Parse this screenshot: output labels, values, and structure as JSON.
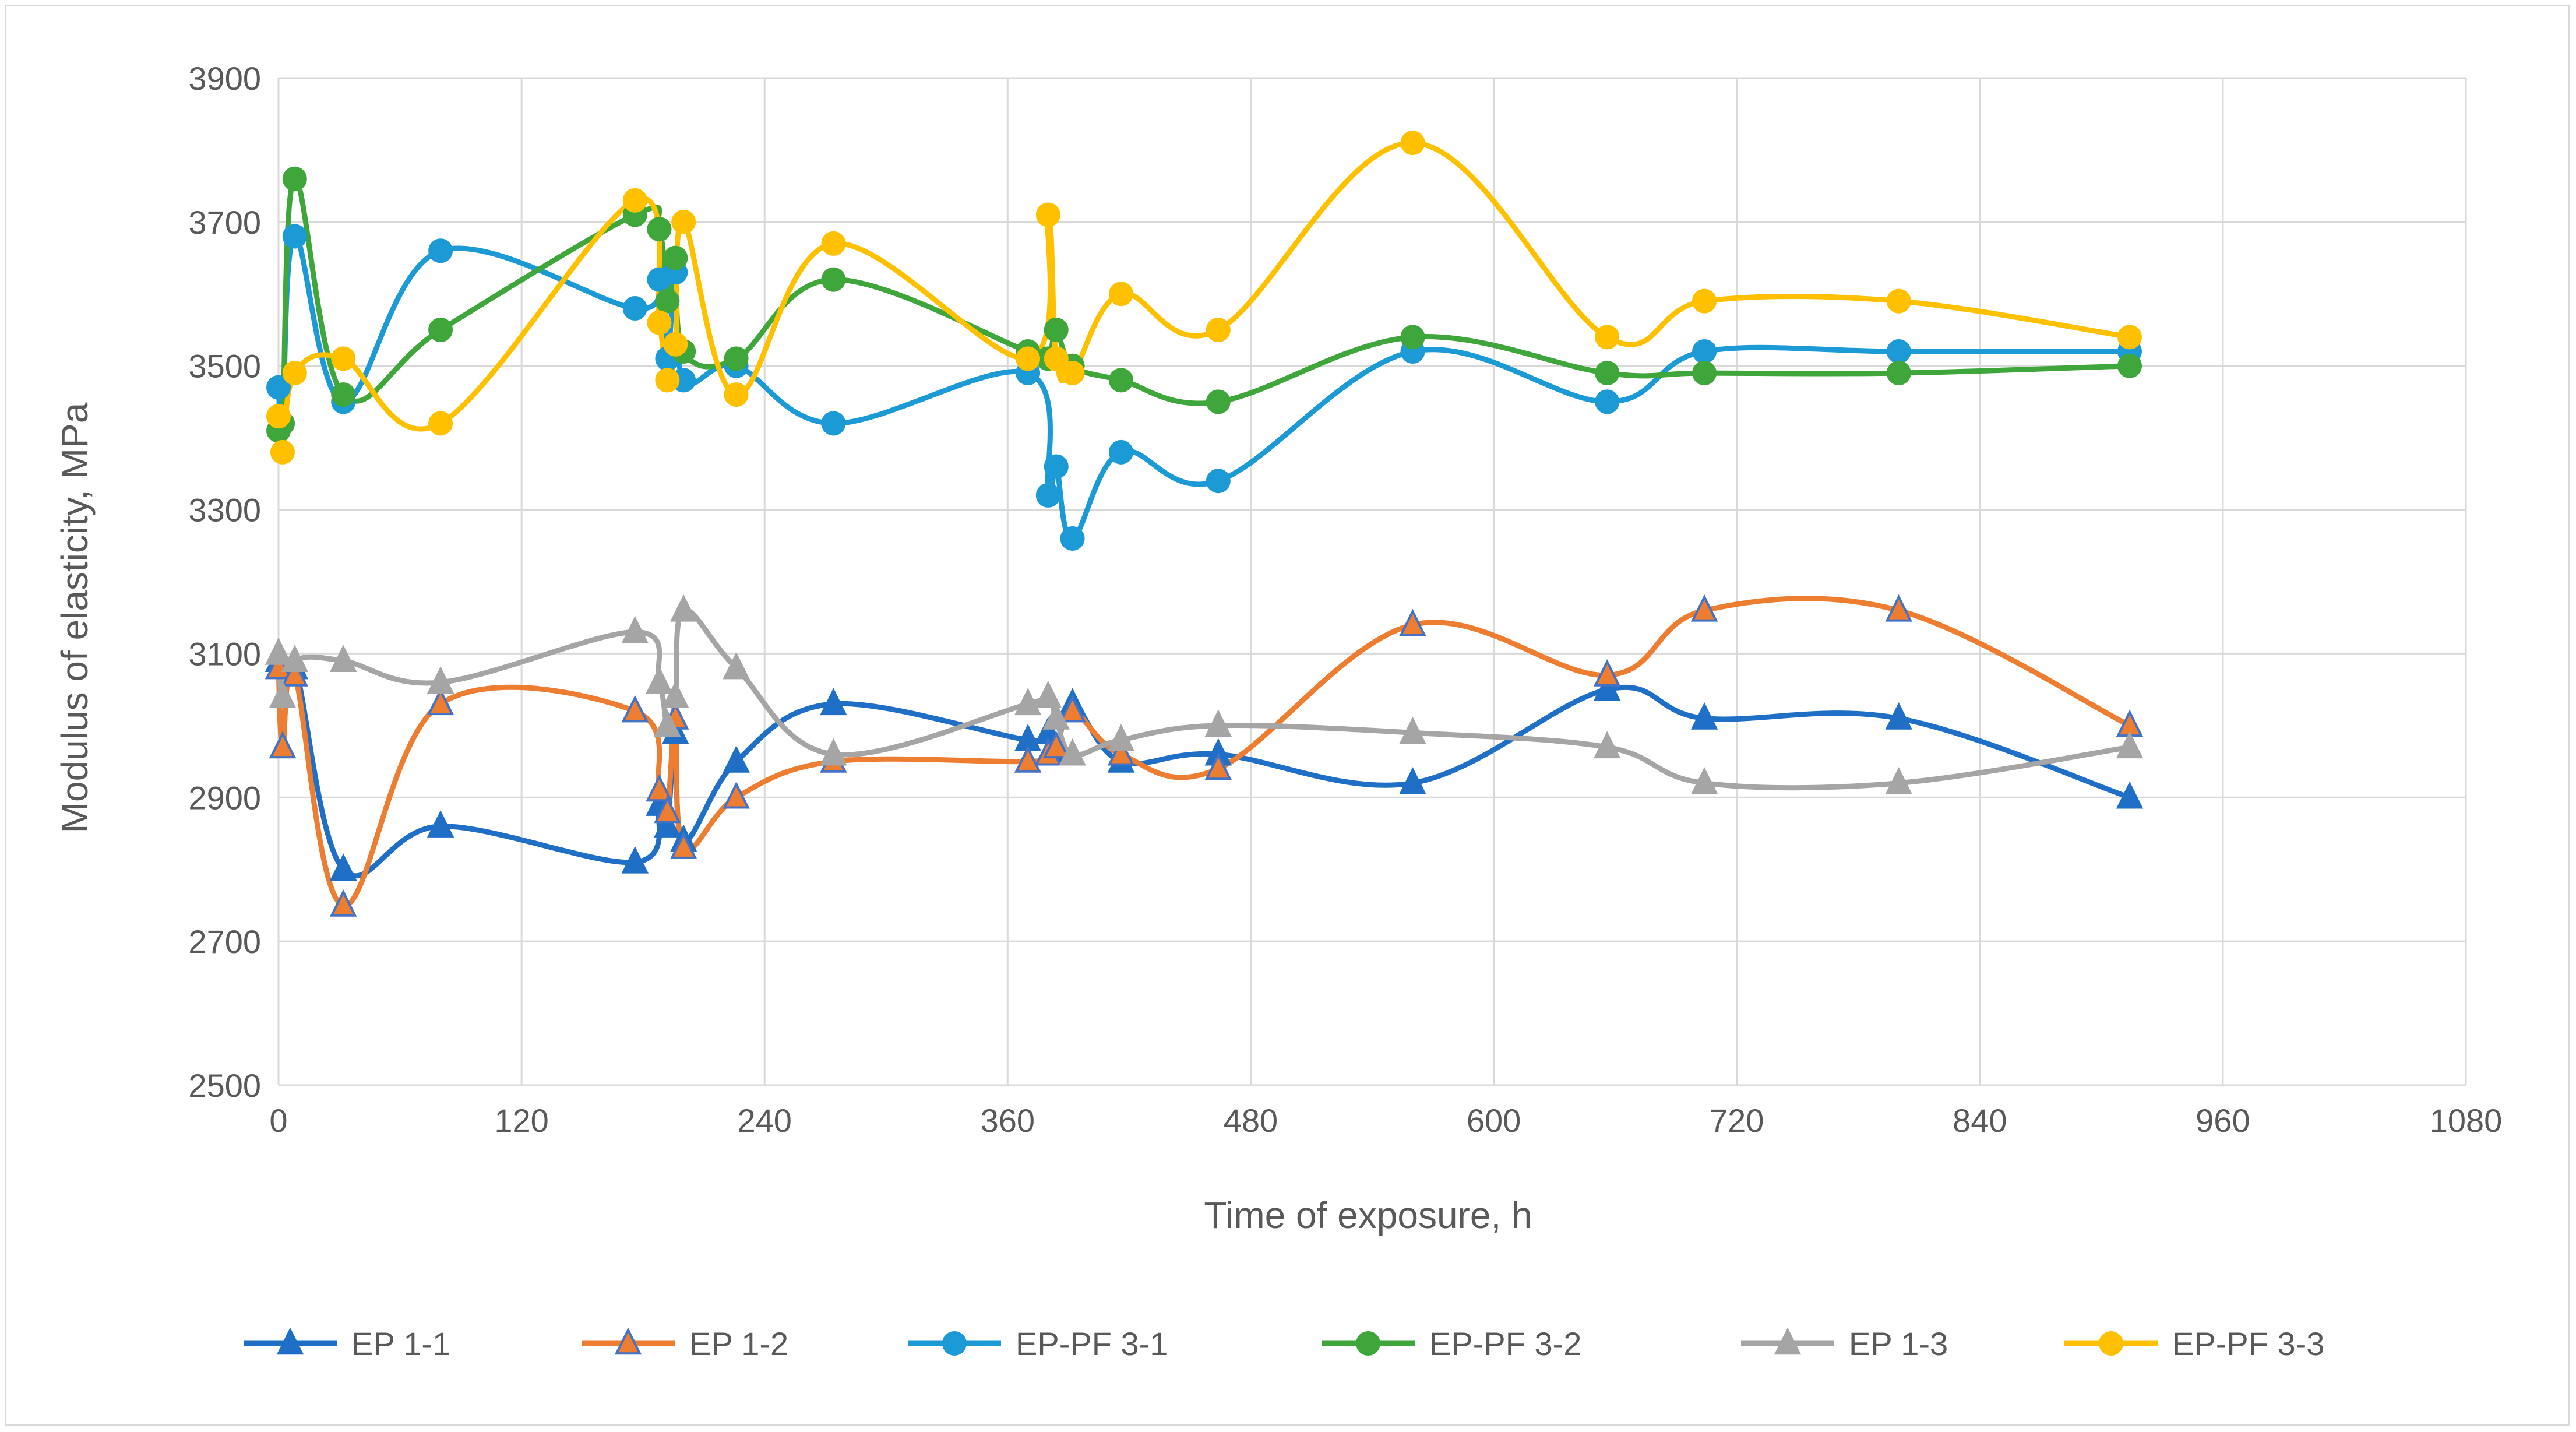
{
  "chart_data": {
    "type": "line",
    "title": "",
    "xlabel": "Time of exposure, h",
    "ylabel": "Modulus of elasticity, MPa",
    "xlim": [
      0,
      1080
    ],
    "ylim": [
      2500,
      3900
    ],
    "xticks": [
      0,
      120,
      240,
      360,
      480,
      600,
      720,
      840,
      960,
      1080
    ],
    "yticks": [
      2500,
      2700,
      2900,
      3100,
      3300,
      3500,
      3700,
      3900
    ],
    "grid": true,
    "legend_position": "bottom",
    "series": [
      {
        "name": "EP 1-1",
        "color": "#1f6fc7",
        "marker": "triangle",
        "marker_fill": "#1f6fc7",
        "x": [
          0,
          2,
          8,
          32,
          80,
          176,
          188,
          192,
          196,
          200,
          226,
          274,
          370,
          380,
          384,
          392,
          416,
          464,
          560,
          656,
          704,
          800,
          914
        ],
        "y": [
          3090,
          2970,
          3080,
          2800,
          2860,
          2810,
          2890,
          2860,
          2990,
          2840,
          2950,
          3030,
          2980,
          2990,
          2960,
          3030,
          2950,
          2960,
          2920,
          3050,
          3010,
          3010,
          2900
        ]
      },
      {
        "name": "EP 1-2",
        "color": "#ed7d31",
        "marker": "triangle",
        "marker_fill": "#ed7d31",
        "marker_edge": "#4472c4",
        "x": [
          0,
          2,
          8,
          32,
          80,
          176,
          188,
          192,
          196,
          200,
          226,
          274,
          370,
          380,
          384,
          392,
          416,
          464,
          560,
          656,
          704,
          800,
          914
        ],
        "y": [
          3080,
          2970,
          3070,
          2750,
          3030,
          3020,
          2910,
          2880,
          3010,
          2830,
          2900,
          2950,
          2950,
          2960,
          2970,
          3020,
          2960,
          2940,
          3140,
          3070,
          3160,
          3160,
          3000
        ]
      },
      {
        "name": "EP-PF 3-1",
        "color": "#1b9ad6",
        "marker": "circle",
        "marker_fill": "#1b9ad6",
        "x": [
          0,
          2,
          8,
          32,
          80,
          176,
          188,
          192,
          196,
          200,
          226,
          274,
          370,
          380,
          384,
          392,
          416,
          464,
          560,
          656,
          704,
          800,
          914
        ],
        "y": [
          3470,
          3420,
          3680,
          3450,
          3660,
          3580,
          3620,
          3510,
          3630,
          3480,
          3500,
          3420,
          3490,
          3320,
          3360,
          3260,
          3380,
          3340,
          3520,
          3450,
          3520,
          3520,
          3520
        ]
      },
      {
        "name": "EP-PF 3-2",
        "color": "#3ea63a",
        "marker": "circle",
        "marker_fill": "#3ea63a",
        "x": [
          0,
          2,
          8,
          32,
          80,
          176,
          188,
          192,
          196,
          200,
          226,
          274,
          370,
          380,
          384,
          392,
          416,
          464,
          560,
          656,
          704,
          800,
          914
        ],
        "y": [
          3410,
          3420,
          3760,
          3460,
          3550,
          3710,
          3690,
          3590,
          3650,
          3520,
          3510,
          3620,
          3520,
          3510,
          3550,
          3500,
          3480,
          3450,
          3540,
          3490,
          3490,
          3490,
          3500
        ]
      },
      {
        "name": "EP 1-3",
        "color": "#a5a5a5",
        "marker": "triangle",
        "marker_fill": "#a5a5a5",
        "x": [
          0,
          2,
          8,
          32,
          80,
          176,
          188,
          192,
          196,
          200,
          226,
          274,
          370,
          380,
          384,
          392,
          416,
          464,
          560,
          656,
          704,
          800,
          914
        ],
        "y": [
          3100,
          3040,
          3090,
          3090,
          3060,
          3130,
          3060,
          3000,
          3040,
          3160,
          3080,
          2960,
          3030,
          3040,
          3010,
          2960,
          2980,
          3000,
          2990,
          2970,
          2920,
          2920,
          2970
        ]
      },
      {
        "name": "EP-PF 3-3",
        "color": "#ffc000",
        "marker": "circle",
        "marker_fill": "#ffc000",
        "x": [
          0,
          2,
          8,
          32,
          80,
          176,
          188,
          192,
          196,
          200,
          226,
          274,
          370,
          380,
          384,
          392,
          416,
          464,
          560,
          656,
          704,
          800,
          914
        ],
        "y": [
          3430,
          3380,
          3490,
          3510,
          3420,
          3730,
          3560,
          3480,
          3530,
          3700,
          3460,
          3670,
          3510,
          3710,
          3510,
          3490,
          3600,
          3550,
          3810,
          3540,
          3590,
          3590,
          3540
        ]
      }
    ]
  }
}
